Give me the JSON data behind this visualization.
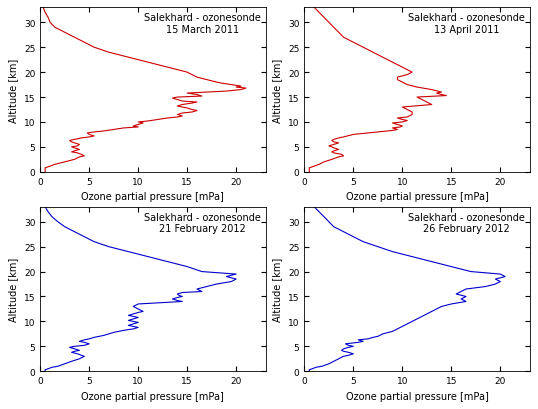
{
  "panels": [
    {
      "title": "Salekhard - ozonesonde\n15 March 2011",
      "color": "#cc0000",
      "xlim": [
        0,
        23
      ],
      "ylim": [
        0,
        33
      ],
      "xticks": [
        0,
        5,
        10,
        15,
        20
      ],
      "yticks": [
        0,
        5,
        10,
        15,
        20,
        25,
        30
      ],
      "profile_alt": [
        0,
        0.3,
        0.5,
        0.8,
        1.0,
        1.5,
        2.0,
        2.5,
        3.0,
        3.2,
        3.5,
        3.8,
        4.0,
        4.2,
        4.5,
        4.8,
        5.0,
        5.2,
        5.5,
        5.8,
        6.0,
        6.3,
        6.5,
        6.8,
        7.0,
        7.2,
        7.5,
        7.8,
        8.0,
        8.2,
        8.5,
        8.8,
        9.0,
        9.2,
        9.5,
        9.8,
        10.0,
        10.2,
        10.5,
        10.8,
        11.0,
        11.2,
        11.5,
        11.8,
        12.0,
        12.3,
        12.5,
        12.8,
        13.0,
        13.2,
        13.5,
        13.8,
        14.0,
        14.2,
        14.5,
        14.8,
        15.0,
        15.2,
        15.5,
        15.8,
        16.0,
        16.2,
        16.5,
        16.8,
        17.0,
        17.2,
        17.5,
        17.8,
        18.0,
        18.5,
        19.0,
        19.5,
        20.0,
        21.0,
        22.0,
        23.0,
        24.0,
        25.0,
        26.0,
        27.0,
        28.0,
        29.0,
        30.0,
        31.0,
        32.0,
        33.0
      ],
      "profile_oz": [
        0.5,
        0.5,
        0.5,
        0.5,
        0.8,
        1.5,
        2.5,
        3.5,
        4.0,
        4.5,
        4.2,
        3.8,
        3.2,
        3.5,
        4.0,
        3.5,
        3.2,
        3.8,
        4.0,
        3.5,
        3.2,
        3.0,
        3.5,
        4.2,
        5.0,
        5.5,
        5.0,
        4.8,
        5.5,
        6.5,
        7.5,
        8.5,
        10.0,
        9.5,
        10.0,
        10.5,
        10.0,
        11.0,
        12.0,
        13.0,
        14.0,
        14.5,
        14.0,
        14.5,
        15.5,
        16.0,
        15.5,
        15.0,
        14.5,
        14.0,
        14.5,
        15.5,
        16.0,
        14.5,
        14.0,
        13.5,
        14.0,
        16.5,
        16.0,
        15.0,
        17.0,
        19.0,
        20.5,
        21.0,
        20.0,
        20.5,
        19.5,
        18.5,
        18.0,
        17.0,
        16.0,
        15.5,
        15.0,
        13.0,
        11.0,
        9.0,
        7.0,
        5.5,
        4.5,
        3.5,
        2.5,
        1.5,
        1.0,
        0.8,
        0.5,
        0.3
      ]
    },
    {
      "title": "Salekhard - ozonesonde\n13 April 2011",
      "color": "#cc0000",
      "xlim": [
        0,
        23
      ],
      "ylim": [
        0,
        33
      ],
      "xticks": [
        0,
        5,
        10,
        15,
        20
      ],
      "yticks": [
        0,
        5,
        10,
        15,
        20,
        25,
        30
      ],
      "profile_alt": [
        0,
        0.3,
        0.5,
        0.8,
        1.0,
        1.5,
        2.0,
        2.5,
        3.0,
        3.2,
        3.5,
        3.8,
        4.0,
        4.2,
        4.5,
        4.8,
        5.0,
        5.2,
        5.5,
        5.8,
        6.0,
        6.3,
        6.5,
        6.8,
        7.0,
        7.5,
        8.0,
        8.3,
        8.5,
        8.8,
        9.0,
        9.2,
        9.5,
        9.8,
        10.0,
        10.3,
        10.5,
        10.8,
        11.0,
        11.5,
        12.0,
        12.5,
        13.0,
        13.5,
        14.0,
        14.5,
        15.0,
        15.3,
        15.5,
        15.8,
        16.0,
        16.5,
        17.0,
        17.5,
        18.0,
        18.5,
        19.0,
        19.5,
        20.0,
        21.0,
        22.0,
        23.0,
        24.0,
        25.0,
        26.0,
        27.0,
        28.0,
        29.0,
        30.0,
        31.0,
        32.0,
        33.0
      ],
      "profile_oz": [
        0.5,
        0.5,
        0.5,
        0.5,
        0.8,
        1.5,
        2.0,
        2.8,
        3.5,
        4.0,
        3.8,
        3.0,
        2.8,
        3.0,
        3.5,
        3.0,
        2.8,
        2.5,
        3.0,
        3.5,
        3.0,
        2.8,
        3.0,
        3.5,
        4.0,
        5.0,
        7.5,
        9.0,
        9.5,
        9.0,
        9.8,
        10.0,
        9.5,
        9.0,
        10.0,
        10.5,
        10.0,
        9.5,
        10.5,
        11.0,
        11.0,
        10.5,
        10.0,
        13.0,
        12.5,
        12.0,
        11.5,
        14.5,
        14.0,
        13.5,
        14.0,
        13.0,
        11.5,
        10.5,
        10.0,
        9.5,
        9.5,
        10.5,
        11.0,
        10.0,
        9.0,
        8.0,
        7.0,
        6.0,
        5.0,
        4.0,
        3.5,
        3.0,
        2.5,
        2.0,
        1.5,
        1.0
      ]
    },
    {
      "title": "Salekhard - ozonesonde\n21 February 2012",
      "color": "#0000cc",
      "xlim": [
        0,
        23
      ],
      "ylim": [
        0,
        33
      ],
      "xticks": [
        0,
        5,
        10,
        15,
        20
      ],
      "yticks": [
        0,
        5,
        10,
        15,
        20,
        25,
        30
      ],
      "profile_alt": [
        0,
        0.3,
        0.5,
        0.8,
        1.0,
        1.5,
        2.0,
        2.5,
        3.0,
        3.2,
        3.5,
        3.8,
        4.0,
        4.2,
        4.5,
        4.8,
        5.0,
        5.2,
        5.5,
        5.8,
        6.0,
        6.3,
        6.5,
        6.8,
        7.0,
        7.2,
        7.5,
        7.8,
        8.0,
        8.2,
        8.5,
        8.8,
        9.0,
        9.2,
        9.5,
        9.8,
        10.0,
        10.2,
        10.5,
        10.8,
        11.0,
        11.2,
        11.5,
        11.8,
        12.0,
        12.5,
        13.0,
        13.5,
        14.0,
        14.2,
        14.5,
        14.8,
        15.0,
        15.2,
        15.5,
        15.8,
        16.0,
        16.5,
        17.0,
        17.5,
        18.0,
        18.5,
        19.0,
        19.5,
        20.0,
        21.0,
        22.0,
        23.0,
        24.0,
        25.0,
        26.0,
        27.0,
        28.0,
        29.0,
        30.0,
        31.0,
        32.0,
        33.0
      ],
      "profile_oz": [
        0.5,
        0.5,
        0.8,
        1.2,
        1.8,
        2.5,
        3.2,
        4.0,
        4.5,
        4.2,
        3.8,
        3.2,
        3.5,
        4.0,
        3.5,
        3.0,
        3.5,
        4.5,
        5.0,
        4.5,
        4.0,
        4.5,
        5.0,
        5.5,
        6.0,
        6.5,
        7.0,
        7.5,
        8.0,
        8.5,
        9.5,
        10.0,
        9.5,
        9.0,
        9.5,
        10.0,
        9.5,
        9.0,
        9.5,
        10.0,
        9.5,
        9.0,
        9.5,
        10.0,
        10.5,
        10.0,
        9.5,
        10.0,
        14.5,
        14.0,
        13.5,
        14.0,
        14.5,
        14.2,
        14.0,
        14.5,
        16.5,
        16.0,
        17.0,
        18.0,
        19.5,
        20.0,
        19.0,
        20.0,
        16.5,
        15.0,
        13.0,
        11.0,
        9.0,
        7.0,
        5.5,
        4.5,
        3.5,
        2.5,
        1.8,
        1.2,
        0.8,
        0.5
      ]
    },
    {
      "title": "Salekhard - ozonesonde\n26 February 2012",
      "color": "#0000cc",
      "xlim": [
        0,
        23
      ],
      "ylim": [
        0,
        33
      ],
      "xticks": [
        0,
        5,
        10,
        15,
        20
      ],
      "yticks": [
        0,
        5,
        10,
        15,
        20,
        25,
        30
      ],
      "profile_alt": [
        0,
        0.3,
        0.5,
        0.8,
        1.0,
        1.5,
        2.0,
        2.5,
        3.0,
        3.2,
        3.5,
        3.8,
        4.0,
        4.2,
        4.5,
        4.8,
        5.0,
        5.2,
        5.5,
        5.8,
        6.0,
        6.3,
        6.5,
        6.8,
        7.0,
        7.5,
        8.0,
        8.5,
        9.0,
        9.5,
        10.0,
        10.5,
        11.0,
        11.5,
        12.0,
        12.5,
        13.0,
        13.5,
        14.0,
        14.5,
        15.0,
        15.5,
        16.0,
        16.5,
        17.0,
        17.5,
        18.0,
        18.5,
        19.0,
        19.5,
        20.0,
        21.0,
        22.0,
        23.0,
        24.0,
        25.0,
        26.0,
        27.0,
        28.0,
        29.0,
        30.0,
        31.0,
        32.0,
        33.0
      ],
      "profile_oz": [
        0.5,
        0.5,
        0.8,
        1.2,
        1.8,
        2.5,
        3.0,
        3.5,
        4.0,
        4.5,
        5.0,
        4.5,
        4.0,
        3.8,
        4.0,
        4.5,
        5.0,
        4.5,
        4.2,
        5.5,
        6.0,
        5.5,
        6.5,
        7.0,
        7.5,
        8.0,
        9.0,
        9.5,
        10.0,
        10.5,
        11.0,
        11.5,
        12.0,
        12.5,
        13.0,
        13.5,
        14.0,
        15.0,
        16.5,
        16.0,
        16.5,
        15.5,
        16.0,
        16.5,
        18.5,
        19.5,
        20.0,
        19.5,
        20.5,
        20.0,
        17.0,
        15.0,
        13.0,
        11.0,
        9.0,
        7.5,
        6.0,
        5.0,
        4.0,
        3.0,
        2.5,
        2.0,
        1.5,
        1.0
      ]
    }
  ],
  "xlabel": "Ozone partial pressure [mPa]",
  "ylabel": "Altitude [km]",
  "linewidth": 0.8,
  "title_fontsize": 7,
  "label_fontsize": 7,
  "tick_fontsize": 6.5,
  "background_color": "#ffffff"
}
